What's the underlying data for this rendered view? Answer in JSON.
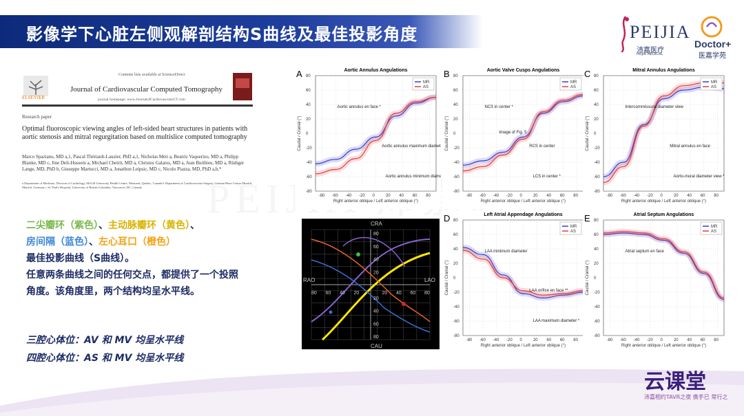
{
  "slide": {
    "title": "影像学下心脏左侧观解剖结构S曲线及最佳投影角度",
    "brand": {
      "peijia": "PEIJIA",
      "peijia_cn": "沛嘉医疗",
      "peijia_sub": "PEIJIA MEDICAL",
      "doctor": "Doctor+",
      "doctor_cn": "医嘉学苑"
    },
    "paper": {
      "availability": "Contents lists available at ScienceDirect",
      "journal": "Journal of Cardiovascular Computed Tomography",
      "homepage": "journal homepage: www.JournalofCardiovascularCT.com",
      "publisher": "ELSEVIER",
      "section": "Research paper",
      "title": "Optimal fluoroscopic viewing angles of left-sided heart structures in patients with aortic stenosis and mitral regurgitation based on multislice computed tomography",
      "authors": "Marco Spaziano, MD a,1, Pascal Thériault-Lauzier, PhD a,1, Nicholas Meti a, Beatriz Vaquerizo, MD a, Philipp Blanke, MD c, Jine Deli-Hussein a, Michael Chetrit, MD a, Christos Galatos, MD a, Jean Buithieu, MD a, Rüdiger Lange, MD, PhD b, Giuseppe Martucci, MD a, Jonathon Leipsic, MD c, Nicolo Piazza, MD, PhD a,b,*",
      "affiliations": "a Department of Medicine, Division of Cardiology, McGill University Health Centre, Montreal, Quebec, Canada  b Department of Cardiovascular Surgery, German Heart Centre Munich, Munich, Germany  c St. Paul's Hospital, University of British Columbia, Vancouver, BC, Canada"
    },
    "legend_text": {
      "l1_a": "二尖瓣环（紫色）",
      "l1_sep": "、",
      "l1_b": "主动脉瓣环（黄色）",
      "l1_end": "、",
      "l2_a": "房间隔（蓝色）",
      "l2_sep": "、",
      "l2_b": "左心耳口（橙色）",
      "l3": "最佳投影曲线（S曲线）。",
      "l4": "任意两条曲线之间的任何交点，都提供了一个投照",
      "l5": "角度。该角度里，两个结构均呈水平线。"
    },
    "views": [
      "三腔心体位：AV 和 MV 均呈水平线",
      "四腔心体位：AS 和 MV 均呈水平线"
    ],
    "watermark": "PEIJIA 沛嘉医疗",
    "bottom_logo": "云课堂",
    "bottom_slogan": "沛嘉相约TAVR之夜 携手已 常行之"
  },
  "rao_graph": {
    "labels": {
      "top": "CRA",
      "bottom": "CAU",
      "left": "RAO",
      "right": "LAO"
    },
    "x_ticks": [
      "80",
      "60",
      "40",
      "20",
      "",
      "20",
      "40",
      "60",
      "80"
    ],
    "y_ticks": [
      "80",
      "60",
      "40",
      "20",
      "",
      "20",
      "40",
      "60",
      "80"
    ],
    "colors": {
      "purple": "#8a63d2",
      "yellow": "#ffe800",
      "blue": "#3a6fd6",
      "orange": "#e8622c",
      "green": "#3bbf4a",
      "red": "#e02020"
    }
  },
  "chart_data": [
    {
      "type": "line",
      "panel": "A",
      "title": "Aortic Annulus Angulations",
      "xlabel": "Right anterior oblique / Left anterior oblique (°)",
      "ylabel": "Caudal / Cranial (°)",
      "xlim": [
        -90,
        90
      ],
      "ylim": [
        -80,
        80
      ],
      "x_ticks": [
        -80,
        -60,
        -40,
        -20,
        0,
        20,
        40,
        60,
        80
      ],
      "y_ticks": [
        -80,
        -60,
        -40,
        -20,
        0,
        20,
        40,
        60,
        80
      ],
      "series": [
        {
          "name": "MR",
          "color": "#3a3acf",
          "x": [
            -90,
            -60,
            -30,
            0,
            30,
            60,
            90
          ],
          "y": [
            -42,
            -36,
            -22,
            -5,
            24,
            42,
            50
          ]
        },
        {
          "name": "AS",
          "color": "#e33b3b",
          "x": [
            -90,
            -60,
            -30,
            0,
            30,
            60,
            90
          ],
          "y": [
            -56,
            -50,
            -35,
            -10,
            28,
            44,
            50
          ]
        }
      ],
      "annotations": [
        "Aortic annulus en face *",
        "Aortic annulus maximum diameter **",
        "Aortic annulus minimum diameter **"
      ]
    },
    {
      "type": "line",
      "panel": "B",
      "title": "Aortic Valve Cusps Angulations",
      "xlabel": "Right anterior oblique / Left anterior oblique (°)",
      "ylabel": "Caudal / Cranial (°)",
      "xlim": [
        -90,
        90
      ],
      "ylim": [
        -80,
        80
      ],
      "x_ticks": [
        -80,
        -60,
        -40,
        -20,
        0,
        20,
        40,
        60,
        80
      ],
      "y_ticks": [
        -80,
        -60,
        -40,
        -20,
        0,
        20,
        40,
        60,
        80
      ],
      "series": [
        {
          "name": "MR",
          "color": "#3a3acf",
          "x": [
            -90,
            -60,
            -30,
            0,
            30,
            60,
            90
          ],
          "y": [
            -44,
            -38,
            -26,
            -5,
            28,
            44,
            52
          ]
        },
        {
          "name": "AS",
          "color": "#e33b3b",
          "x": [
            -90,
            -60,
            -30,
            0,
            30,
            60,
            90
          ],
          "y": [
            -52,
            -46,
            -30,
            -8,
            30,
            46,
            54
          ]
        }
      ],
      "annotations": [
        "NCS in center *",
        "RCS in center",
        "LCS in center *",
        "Image of Fig. 5"
      ]
    },
    {
      "type": "line",
      "panel": "C",
      "title": "Mitral Annulus Angulations",
      "xlabel": "Right anterior oblique / Left anterior oblique (°)",
      "ylabel": "Caudal / Cranial (°)",
      "xlim": [
        -90,
        90
      ],
      "ylim": [
        -80,
        80
      ],
      "x_ticks": [
        -80,
        -60,
        -40,
        -20,
        0,
        20,
        40,
        60,
        80
      ],
      "y_ticks": [
        -80,
        -60,
        -40,
        -20,
        0,
        20,
        40,
        60,
        80
      ],
      "series": [
        {
          "name": "MR",
          "color": "#3a3acf",
          "x": [
            -90,
            -60,
            -30,
            0,
            30,
            60,
            90
          ],
          "y": [
            -60,
            -40,
            12,
            48,
            60,
            64,
            62
          ]
        },
        {
          "name": "AS",
          "color": "#e33b3b",
          "x": [
            -90,
            -60,
            -30,
            0,
            30,
            60,
            90
          ],
          "y": [
            -68,
            -46,
            10,
            52,
            66,
            70,
            70
          ]
        }
      ],
      "annotations": [
        "Intercommissural diameter view",
        "Mitral annulus en face",
        "Aorto-mural diameter view *"
      ]
    },
    {
      "type": "line",
      "panel": "D",
      "title": "Left Atrial Appendage Angulations",
      "xlabel": "Right anterior oblique / Left anterior oblique (°)",
      "ylabel": "Caudal / Cranial (°)",
      "xlim": [
        -90,
        90
      ],
      "ylim": [
        -80,
        80
      ],
      "x_ticks": [
        -80,
        -60,
        -40,
        -20,
        0,
        20,
        40,
        60,
        80
      ],
      "y_ticks": [
        -80,
        -60,
        -40,
        -20,
        0,
        20,
        40,
        60,
        80
      ],
      "series": [
        {
          "name": "MR",
          "color": "#3a3acf",
          "x": [
            -90,
            -60,
            -30,
            0,
            30,
            60,
            90
          ],
          "y": [
            42,
            32,
            4,
            -22,
            -28,
            -24,
            -20
          ]
        },
        {
          "name": "AS",
          "color": "#e33b3b",
          "x": [
            -90,
            -60,
            -30,
            0,
            30,
            60,
            90
          ],
          "y": [
            38,
            26,
            0,
            -18,
            -24,
            -22,
            -18
          ]
        }
      ],
      "annotations": [
        "LAA minimum diameter",
        "LAA orifice en face **",
        "LAA maximum diameter *"
      ]
    },
    {
      "type": "line",
      "panel": "E",
      "title": "Atrial Septum Angulations",
      "xlabel": "Right anterior oblique / Left anterior oblique (°)",
      "ylabel": "Caudal / Cranial (°)",
      "xlim": [
        -90,
        90
      ],
      "ylim": [
        -80,
        80
      ],
      "x_ticks": [
        -80,
        -60,
        -40,
        -20,
        0,
        20,
        40,
        60,
        80
      ],
      "y_ticks": [
        -80,
        -60,
        -40,
        -20,
        0,
        20,
        40,
        60,
        80
      ],
      "series": [
        {
          "name": "MR",
          "color": "#3a3acf",
          "x": [
            -90,
            -60,
            -30,
            0,
            30,
            60,
            90
          ],
          "y": [
            60,
            62,
            60,
            52,
            34,
            6,
            -30
          ]
        },
        {
          "name": "AS",
          "color": "#e33b3b",
          "x": [
            -90,
            -60,
            -30,
            0,
            30,
            60,
            90
          ],
          "y": [
            62,
            64,
            62,
            54,
            36,
            8,
            -28
          ]
        }
      ],
      "annotations": [
        "Atrial septum en face"
      ]
    }
  ]
}
